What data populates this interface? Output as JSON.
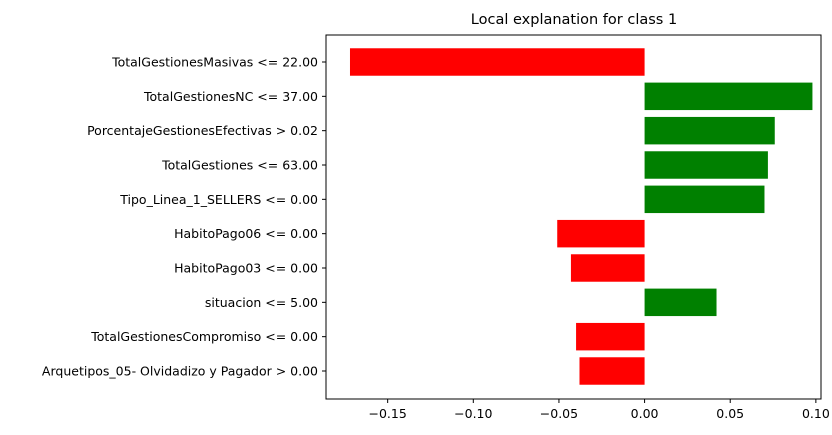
{
  "chart_data": {
    "type": "bar",
    "orientation": "horizontal",
    "title": "Local explanation for class 1",
    "xlabel": "",
    "ylabel": "",
    "categories": [
      "TotalGestionesMasivas <= 22.00",
      "TotalGestionesNC <= 37.00",
      "PorcentajeGestionesEfectivas > 0.02",
      "TotalGestiones <= 63.00",
      "Tipo_Linea_1_SELLERS <= 0.00",
      "HabitoPago06 <= 0.00",
      "HabitoPago03 <= 0.00",
      "situacion <= 5.00",
      "TotalGestionesCompromiso <= 0.00",
      "Arquetipos_05- Olvidadizo y Pagador > 0.00"
    ],
    "values": [
      -0.172,
      0.098,
      0.076,
      0.072,
      0.07,
      -0.051,
      -0.043,
      0.042,
      -0.04,
      -0.038
    ],
    "colors": {
      "positive": "#008000",
      "negative": "#ff0000"
    },
    "xlim": [
      -0.186,
      0.103
    ],
    "xticks": [
      -0.15,
      -0.1,
      -0.05,
      0.0,
      0.05,
      0.1
    ],
    "xtick_labels": [
      "−0.15",
      "−0.10",
      "−0.05",
      "0.00",
      "0.05",
      "0.10"
    ],
    "grid": false,
    "legend": "none"
  }
}
